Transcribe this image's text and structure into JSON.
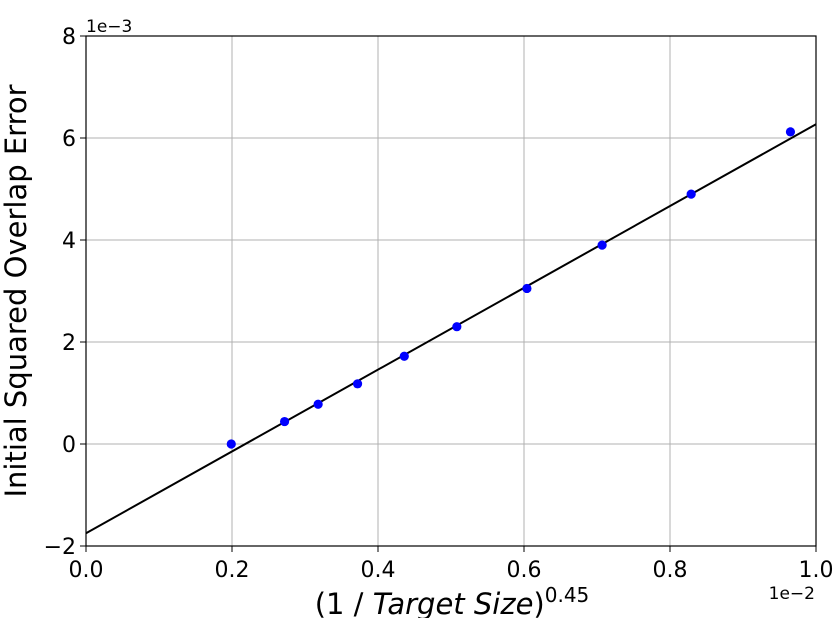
{
  "chart_data": {
    "type": "scatter",
    "title": "",
    "xlabel_parts": {
      "prefix": "(1 / ",
      "italic": "Target Size",
      "suffix": ")",
      "superscript": "0.45"
    },
    "ylabel": "Initial Squared Overlap Error",
    "x_offset_text": "1e−2",
    "y_offset_text": "1e−3",
    "xlim": [
      0.0,
      1.0
    ],
    "ylim": [
      -2,
      8
    ],
    "x_multiplier": 0.01,
    "y_multiplier": 0.001,
    "x_ticks": [
      0.0,
      0.2,
      0.4,
      0.6,
      0.8,
      1.0
    ],
    "x_tick_labels": [
      "0.0",
      "0.2",
      "0.4",
      "0.6",
      "0.8",
      "1.0"
    ],
    "y_ticks": [
      -2,
      0,
      2,
      4,
      6,
      8
    ],
    "y_tick_labels": [
      "−2",
      "0",
      "2",
      "4",
      "6",
      "8"
    ],
    "grid": true,
    "series": [
      {
        "type": "scatter",
        "color": "#0000ff",
        "x": [
          0.199,
          0.272,
          0.318,
          0.372,
          0.436,
          0.508,
          0.604,
          0.707,
          0.829,
          0.965
        ],
        "y": [
          0.0,
          0.44,
          0.78,
          1.18,
          1.72,
          2.3,
          3.05,
          3.9,
          4.9,
          6.12
        ]
      },
      {
        "type": "line",
        "color": "#000000",
        "x": [
          0.0,
          1.0
        ],
        "y": [
          -1.75,
          6.27
        ]
      }
    ]
  }
}
